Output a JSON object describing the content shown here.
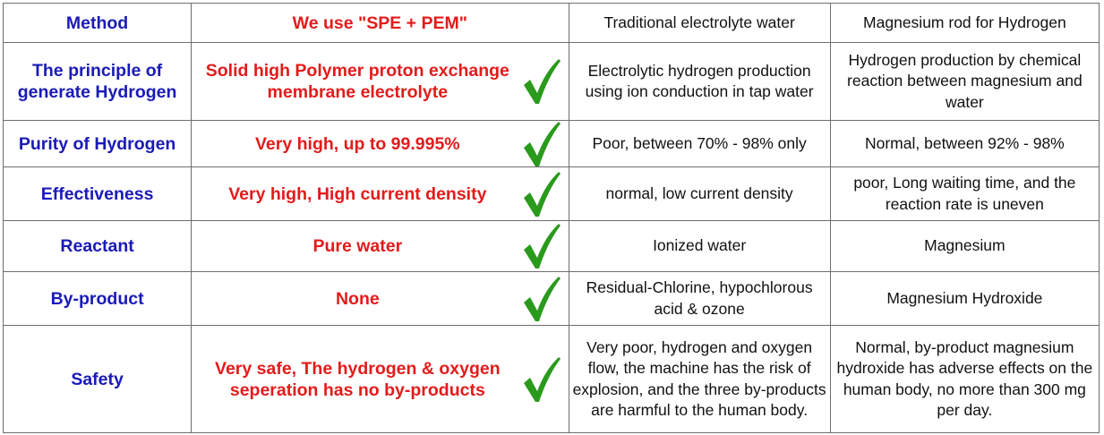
{
  "header": {
    "method": "Method",
    "ours": "We use \"SPE + PEM\"",
    "traditional": "Traditional electrolyte water",
    "magnesium": "Magnesium rod for Hydrogen"
  },
  "rows": [
    {
      "method": "The principle of generate Hydrogen",
      "ours": "Solid high Polymer proton exchange membrane electrolyte",
      "traditional": "Electrolytic hydrogen production using ion conduction in tap water",
      "magnesium": "Hydrogen production by chemical reaction between magnesium and water"
    },
    {
      "method": "Purity of Hydrogen",
      "ours": "Very high, up to 99.995%",
      "traditional": "Poor, between 70% - 98% only",
      "magnesium": "Normal, between 92% - 98%"
    },
    {
      "method": "Effectiveness",
      "ours": "Very high, High current density",
      "traditional": "normal, low current density",
      "magnesium": "poor, Long waiting time, and the reaction rate is uneven"
    },
    {
      "method": "Reactant",
      "ours": "Pure water",
      "traditional": "Ionized water",
      "magnesium": "Magnesium"
    },
    {
      "method": "By-product",
      "ours": "None",
      "traditional": "Residual-Chlorine, hypochlorous acid & ozone",
      "magnesium": "Magnesium Hydroxide"
    },
    {
      "method": "Safety",
      "ours": "Very safe, The hydrogen & oxygen seperation has no by-products",
      "traditional": "Very poor, hydrogen and oxygen flow, the machine has the risk of explosion, and the three by-products are harmful to the human body.",
      "magnesium": "Normal, by-product magnesium hydroxide has adverse effects on the human body, no more than 300 mg per day."
    }
  ],
  "icons": {
    "row_mark": "checkmark-icon"
  },
  "colors": {
    "method_text": "#1a1ab8",
    "ours_text": "#e31b1b",
    "check": "#2a9a1c",
    "border": "#6e6e6e"
  }
}
